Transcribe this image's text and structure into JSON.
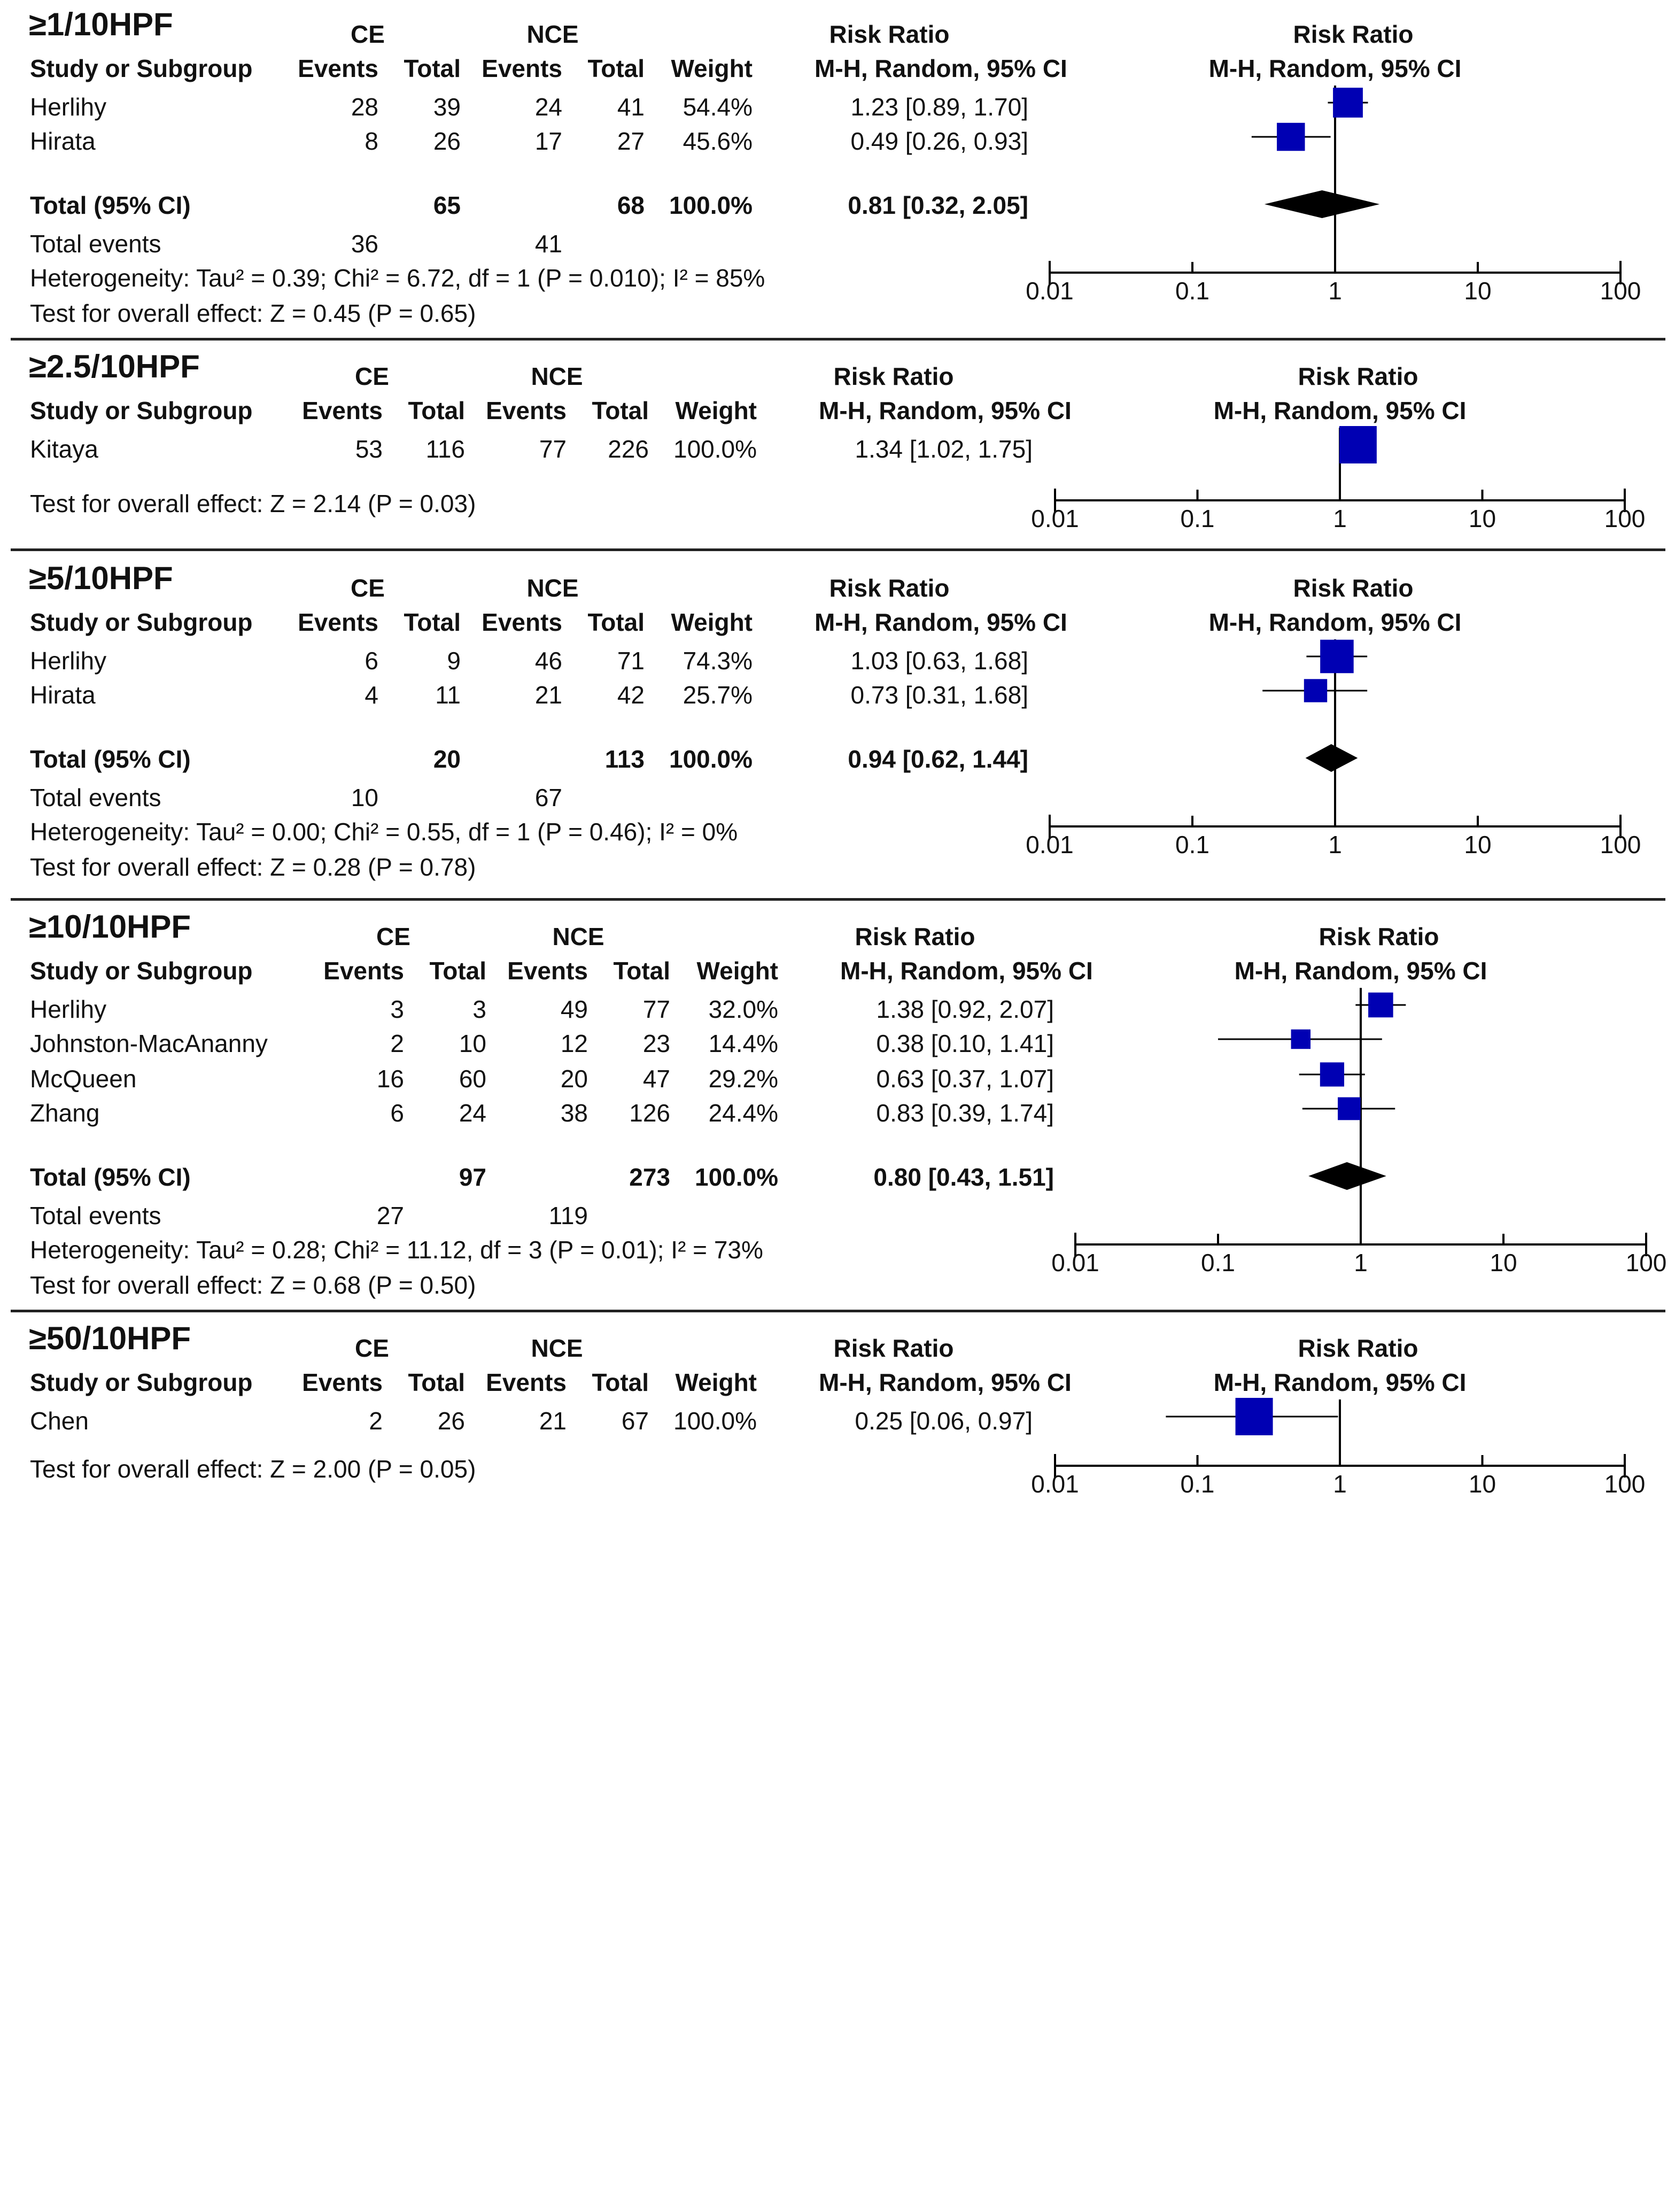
{
  "headers": {
    "study": "Study or Subgroup",
    "group1": "CE",
    "group2": "NCE",
    "events": "Events",
    "total": "Total",
    "weight": "Weight",
    "rr": "Risk Ratio",
    "method": "M-H, Random, 95% CI",
    "total_row": "Total (95% CI)",
    "total_events": "Total events",
    "axis_ticks": [
      "0.01",
      "0.1",
      "1",
      "10",
      "100"
    ]
  },
  "colors": {
    "square": "#0000b3",
    "diamond": "#000000",
    "line": "#000000"
  },
  "chart_data": [
    {
      "type": "forest",
      "title": "≥1/10HPF",
      "scale": "log",
      "xlim": [
        0.01,
        100
      ],
      "studies": [
        {
          "name": "Herlihy",
          "ce_events": "28",
          "ce_total": "39",
          "nce_events": "24",
          "nce_total": "41",
          "weight": "54.4%",
          "ci_text": "1.23 [0.89, 1.70]",
          "rr": 1.23,
          "lo": 0.89,
          "hi": 1.7,
          "w": 54.4
        },
        {
          "name": "Hirata",
          "ce_events": "8",
          "ce_total": "26",
          "nce_events": "17",
          "nce_total": "27",
          "weight": "45.6%",
          "ci_text": "0.49 [0.26, 0.93]",
          "rr": 0.49,
          "lo": 0.26,
          "hi": 0.93,
          "w": 45.6
        }
      ],
      "total": {
        "ce_total": "65",
        "nce_total": "68",
        "weight": "100.0%",
        "ci_text": "0.81 [0.32, 2.05]",
        "rr": 0.81,
        "lo": 0.32,
        "hi": 2.05
      },
      "total_events": {
        "ce": "36",
        "nce": "41"
      },
      "heterogeneity": "Heterogeneity: Tau² = 0.39; Chi² = 6.72, df = 1 (P = 0.010); I² = 85%",
      "overall": "Test for overall effect: Z = 0.45 (P = 0.65)"
    },
    {
      "type": "forest",
      "title": "≥2.5/10HPF",
      "scale": "log",
      "xlim": [
        0.01,
        100
      ],
      "studies": [
        {
          "name": "Kitaya",
          "ce_events": "53",
          "ce_total": "116",
          "nce_events": "77",
          "nce_total": "226",
          "weight": "100.0%",
          "ci_text": "1.34 [1.02, 1.75]",
          "rr": 1.34,
          "lo": 1.02,
          "hi": 1.75,
          "w": 100
        }
      ],
      "overall": "Test for overall effect: Z = 2.14 (P = 0.03)"
    },
    {
      "type": "forest",
      "title": "≥5/10HPF",
      "scale": "log",
      "xlim": [
        0.01,
        100
      ],
      "studies": [
        {
          "name": "Herlihy",
          "ce_events": "6",
          "ce_total": "9",
          "nce_events": "46",
          "nce_total": "71",
          "weight": "74.3%",
          "ci_text": "1.03 [0.63, 1.68]",
          "rr": 1.03,
          "lo": 0.63,
          "hi": 1.68,
          "w": 74.3
        },
        {
          "name": "Hirata",
          "ce_events": "4",
          "ce_total": "11",
          "nce_events": "21",
          "nce_total": "42",
          "weight": "25.7%",
          "ci_text": "0.73 [0.31, 1.68]",
          "rr": 0.73,
          "lo": 0.31,
          "hi": 1.68,
          "w": 25.7
        }
      ],
      "total": {
        "ce_total": "20",
        "nce_total": "113",
        "weight": "100.0%",
        "ci_text": "0.94 [0.62, 1.44]",
        "rr": 0.94,
        "lo": 0.62,
        "hi": 1.44
      },
      "total_events": {
        "ce": "10",
        "nce": "67"
      },
      "heterogeneity": "Heterogeneity: Tau² = 0.00; Chi² = 0.55, df = 1 (P = 0.46); I² = 0%",
      "overall": "Test for overall effect: Z = 0.28 (P = 0.78)"
    },
    {
      "type": "forest",
      "title": "≥10/10HPF",
      "scale": "log",
      "xlim": [
        0.01,
        100
      ],
      "studies": [
        {
          "name": "Herlihy",
          "ce_events": "3",
          "ce_total": "3",
          "nce_events": "49",
          "nce_total": "77",
          "weight": "32.0%",
          "ci_text": "1.38 [0.92, 2.07]",
          "rr": 1.38,
          "lo": 0.92,
          "hi": 2.07,
          "w": 32.0
        },
        {
          "name": "Johnston-MacAnanny",
          "ce_events": "2",
          "ce_total": "10",
          "nce_events": "12",
          "nce_total": "23",
          "weight": "14.4%",
          "ci_text": "0.38 [0.10, 1.41]",
          "rr": 0.38,
          "lo": 0.1,
          "hi": 1.41,
          "w": 14.4
        },
        {
          "name": "McQueen",
          "ce_events": "16",
          "ce_total": "60",
          "nce_events": "20",
          "nce_total": "47",
          "weight": "29.2%",
          "ci_text": "0.63 [0.37, 1.07]",
          "rr": 0.63,
          "lo": 0.37,
          "hi": 1.07,
          "w": 29.2
        },
        {
          "name": "Zhang",
          "ce_events": "6",
          "ce_total": "24",
          "nce_events": "38",
          "nce_total": "126",
          "weight": "24.4%",
          "ci_text": "0.83 [0.39, 1.74]",
          "rr": 0.83,
          "lo": 0.39,
          "hi": 1.74,
          "w": 24.4
        }
      ],
      "total": {
        "ce_total": "97",
        "nce_total": "273",
        "weight": "100.0%",
        "ci_text": "0.80 [0.43, 1.51]",
        "rr": 0.8,
        "lo": 0.43,
        "hi": 1.51
      },
      "total_events": {
        "ce": "27",
        "nce": "119"
      },
      "heterogeneity": "Heterogeneity: Tau² = 0.28; Chi² = 11.12, df = 3 (P = 0.01); I² = 73%",
      "overall": "Test for overall effect: Z = 0.68 (P = 0.50)"
    },
    {
      "type": "forest",
      "title": "≥50/10HPF",
      "scale": "log",
      "xlim": [
        0.01,
        100
      ],
      "studies": [
        {
          "name": "Chen",
          "ce_events": "2",
          "ce_total": "26",
          "nce_events": "21",
          "nce_total": "67",
          "weight": "100.0%",
          "ci_text": "0.25 [0.06, 0.97]",
          "rr": 0.25,
          "lo": 0.06,
          "hi": 0.97,
          "w": 100
        }
      ],
      "overall": "Test for overall effect: Z = 2.00 (P = 0.05)"
    }
  ]
}
